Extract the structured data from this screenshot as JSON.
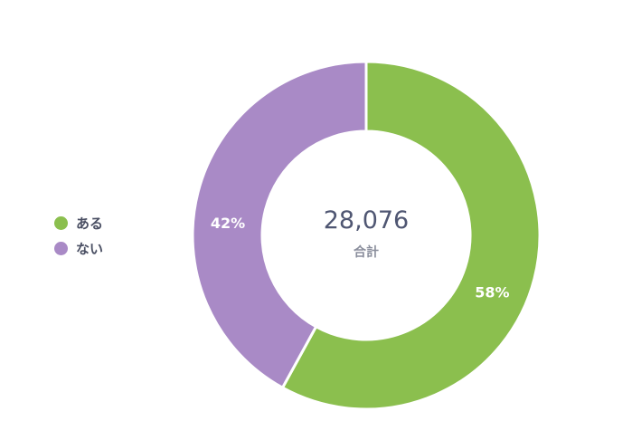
{
  "chart_data": {
    "type": "donut",
    "title": "",
    "categories": [
      "ある",
      "ない"
    ],
    "values": [
      58,
      42
    ],
    "value_labels": [
      "58%",
      "42%"
    ],
    "colors": [
      "#8bbf4e",
      "#a98ac6"
    ],
    "total_value": "28,076",
    "total_caption": "合計",
    "legend_position": "left"
  }
}
